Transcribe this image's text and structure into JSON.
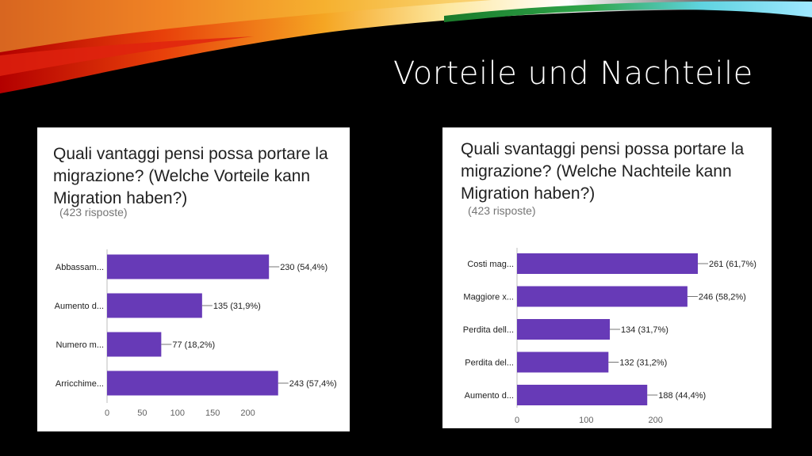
{
  "slide": {
    "title": "Vorteile und Nachteile"
  },
  "colors": {
    "bar": "#673ab7",
    "background": "#000000"
  },
  "left_panel": {
    "question": "Quali vantaggi pensi possa portare la migrazione? (Welche Vorteile kann Migration haben?)",
    "responses": "(423 risposte)"
  },
  "right_panel": {
    "question": "Quali svantaggi pensi possa portare la migrazione? (Welche Nachteile kann Migration haben?)",
    "responses": "(423 risposte)"
  },
  "chart_data": [
    {
      "type": "bar",
      "orientation": "horizontal",
      "categories": [
        "Abbassam...",
        "Aumento d...",
        "Numero m...",
        "Arricchime..."
      ],
      "values": [
        230,
        135,
        77,
        243
      ],
      "data_labels": [
        "230 (54,4%)",
        "135 (31,9%)",
        "77 (18,2%)",
        "243 (57,4%)"
      ],
      "x_ticks": [
        0,
        50,
        100,
        150,
        200
      ],
      "xlim": [
        0,
        250
      ]
    },
    {
      "type": "bar",
      "orientation": "horizontal",
      "categories": [
        "Costi mag...",
        "Maggiore x...",
        "Perdita dell...",
        "Perdita del...",
        "Aumento d..."
      ],
      "values": [
        261,
        246,
        134,
        132,
        188
      ],
      "data_labels": [
        "261 (61,7%)",
        "246 (58,2%)",
        "134 (31,7%)",
        "132 (31,2%)",
        "188 (44,4%)"
      ],
      "x_ticks": [
        0,
        100,
        200
      ],
      "xlim": [
        0,
        300
      ]
    }
  ]
}
